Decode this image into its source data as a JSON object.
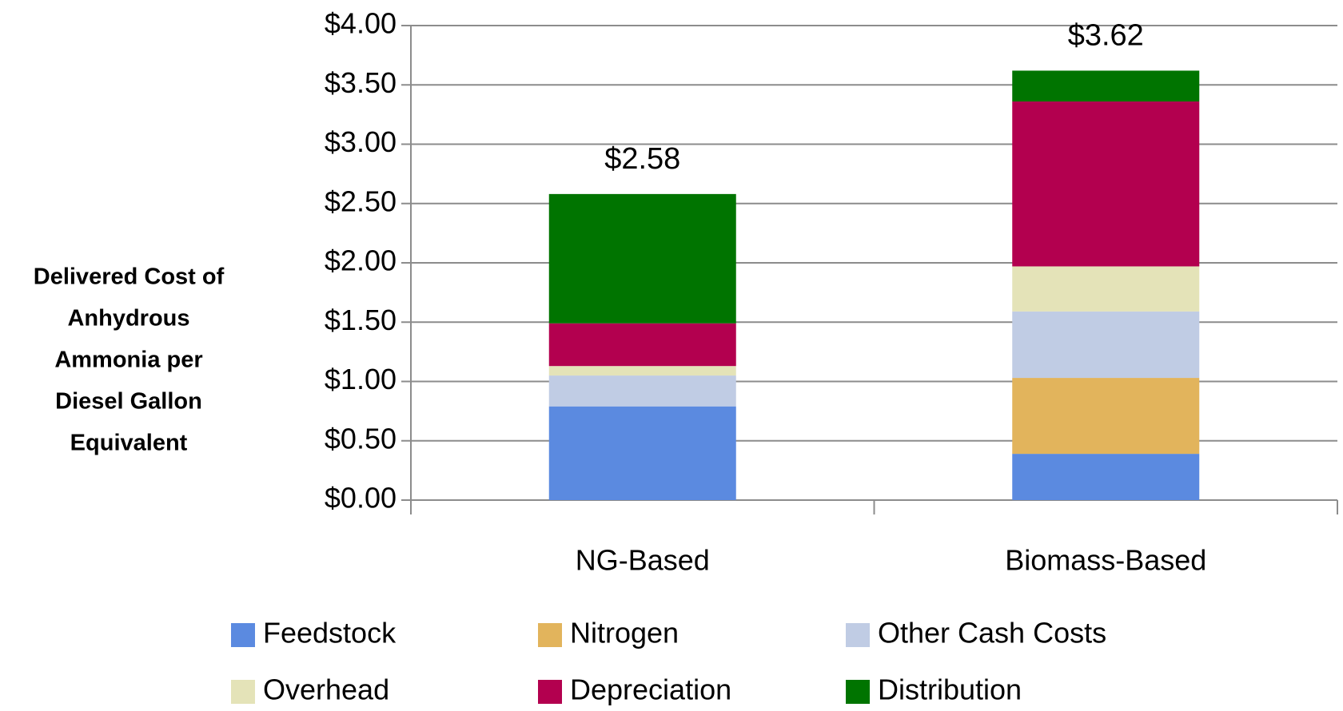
{
  "chart_data": {
    "type": "stacked_bar",
    "y_label": [
      "Delivered Cost of",
      "Anhydrous",
      "Ammonia per",
      "Diesel Gallon",
      "Equivalent"
    ],
    "categories": [
      "NG-Based",
      "Biomass-Based"
    ],
    "series": [
      {
        "name": "Feedstock",
        "color": "#5b8ae0",
        "values": [
          0.79,
          0.39
        ]
      },
      {
        "name": "Nitrogen",
        "color": "#e2b45c",
        "values": [
          0,
          0.64
        ]
      },
      {
        "name": "Other Cash Costs",
        "color": "#c0cce4",
        "values": [
          0.26,
          0.56
        ]
      },
      {
        "name": "Overhead",
        "color": "#e4e3b8",
        "values": [
          0.08,
          0.38
        ]
      },
      {
        "name": "Depreciation",
        "color": "#b3004f",
        "values": [
          0.36,
          1.39
        ]
      },
      {
        "name": "Distribution",
        "color": "#007400",
        "values": [
          1.09,
          0.26
        ]
      }
    ],
    "totals": [
      2.58,
      3.62
    ],
    "total_labels": [
      "$2.58",
      "$3.62"
    ],
    "ylim": [
      0,
      4
    ],
    "yticks": [
      {
        "value": 0,
        "label": "$0.00"
      },
      {
        "value": 0.5,
        "label": "$0.50"
      },
      {
        "value": 1,
        "label": "$1.00"
      },
      {
        "value": 1.5,
        "label": "$1.50"
      },
      {
        "value": 2,
        "label": "$2.00"
      },
      {
        "value": 2.5,
        "label": "$2.50"
      },
      {
        "value": 3,
        "label": "$3.00"
      },
      {
        "value": 3.5,
        "label": "$3.50"
      },
      {
        "value": 4,
        "label": "$4.00"
      }
    ],
    "grid": true
  }
}
